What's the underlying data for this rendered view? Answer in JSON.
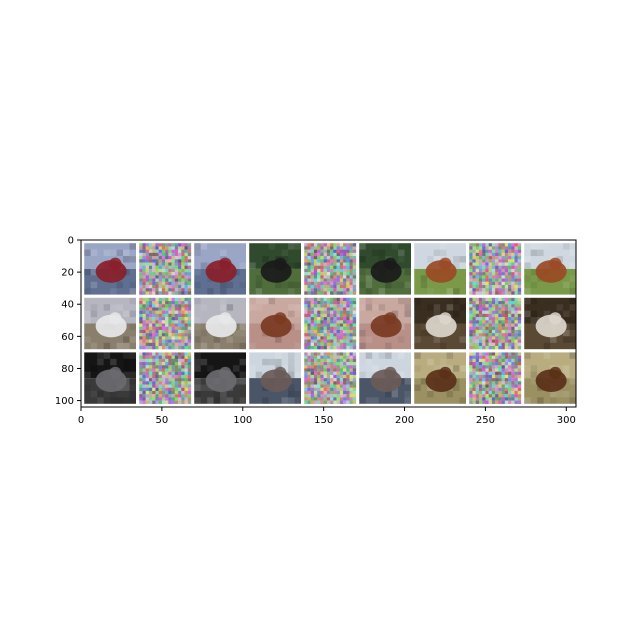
{
  "chart_data": {
    "type": "image-grid",
    "title": "",
    "xlabel": "",
    "ylabel": "",
    "xlim": [
      0,
      306
    ],
    "ylim": [
      104,
      0
    ],
    "y_inverted": true,
    "grid": false,
    "xticks": [
      0,
      50,
      100,
      150,
      200,
      250,
      300
    ],
    "yticks": [
      0,
      20,
      40,
      60,
      80,
      100
    ],
    "xtick_labels": [
      "0",
      "50",
      "100",
      "150",
      "200",
      "250",
      "300"
    ],
    "ytick_labels": [
      "0",
      "20",
      "40",
      "60",
      "80",
      "100"
    ],
    "tile_size": 32,
    "tile_gap": 2,
    "rows": 3,
    "cols": 9,
    "column_roles": [
      "original",
      "noise",
      "reconstruction",
      "original",
      "noise",
      "reconstruction",
      "original",
      "noise",
      "reconstruction"
    ],
    "tiles": [
      [
        "ship",
        "noise",
        "ship",
        "bird-on-grass",
        "noise",
        "bird-on-grass",
        "horse-brown",
        "noise",
        "horse-brown"
      ],
      [
        "airplane-white",
        "noise",
        "airplane-white",
        "dog-saint-bernard",
        "noise",
        "dog-saint-bernard",
        "horse-white",
        "noise",
        "horse-white"
      ],
      [
        "car-dark",
        "noise",
        "car-dark",
        "ship-cargo",
        "noise",
        "ship-cargo",
        "frog-brown",
        "noise",
        "frog-brown"
      ]
    ],
    "scene_colors": {
      "ship": {
        "top": "#9aa6c6",
        "bottom": "#5f6f92",
        "subject": "#8a1e2a"
      },
      "bird-on-grass": {
        "top": "#2f4a2c",
        "bottom": "#4f6e3c",
        "subject": "#1a1a1a"
      },
      "horse-brown": {
        "top": "#cfd8e0",
        "bottom": "#7a9a4a",
        "subject": "#9a4a24"
      },
      "airplane-white": {
        "top": "#b5b6c0",
        "bottom": "#8a7f6c",
        "subject": "#e8e8ea"
      },
      "dog-saint-bernard": {
        "top": "#c9a8a0",
        "bottom": "#b89088",
        "subject": "#7a3a22"
      },
      "horse-white": {
        "top": "#3a2e20",
        "bottom": "#5a4a34",
        "subject": "#dcd6cc"
      },
      "car-dark": {
        "top": "#151515",
        "bottom": "#3a3a3a",
        "subject": "#6a6a70"
      },
      "ship-cargo": {
        "top": "#cdd6df",
        "bottom": "#4a5668",
        "subject": "#6a5a58"
      },
      "frog-brown": {
        "top": "#b9ad80",
        "bottom": "#9a9062",
        "subject": "#5a3018"
      }
    }
  }
}
